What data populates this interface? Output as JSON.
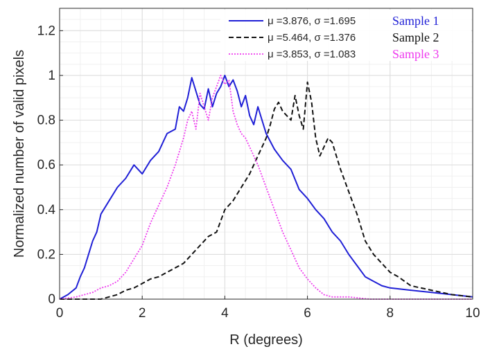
{
  "chart_data": {
    "type": "line",
    "xlabel": "R (degrees)",
    "ylabel": "Normalized number of valid pixels",
    "xlim": [
      0,
      10
    ],
    "ylim": [
      0,
      1.3
    ],
    "xticks": [
      "0",
      "2",
      "4",
      "6",
      "8",
      "10"
    ],
    "yticks": [
      "0",
      "0.2",
      "0.4",
      "0.6",
      "0.8",
      "1",
      "1.2"
    ],
    "grid": true,
    "legend_position": "top-right",
    "series": [
      {
        "name": "Sample 1",
        "stats": "μ =3.876, σ =1.695",
        "color": "#1f1fd6",
        "style": "solid",
        "x": [
          0,
          0.2,
          0.4,
          0.5,
          0.6,
          0.8,
          0.9,
          1.0,
          1.2,
          1.4,
          1.6,
          1.8,
          2.0,
          2.2,
          2.4,
          2.5,
          2.6,
          2.8,
          2.9,
          3.0,
          3.1,
          3.2,
          3.4,
          3.5,
          3.6,
          3.7,
          3.8,
          3.9,
          4.0,
          4.1,
          4.2,
          4.3,
          4.4,
          4.5,
          4.6,
          4.7,
          4.8,
          5.0,
          5.2,
          5.4,
          5.6,
          5.8,
          6.0,
          6.2,
          6.4,
          6.6,
          6.8,
          7.0,
          7.2,
          7.4,
          7.6,
          7.8,
          8.0,
          8.5,
          9.0,
          9.5,
          10.0
        ],
        "y": [
          0,
          0.02,
          0.05,
          0.1,
          0.14,
          0.26,
          0.3,
          0.38,
          0.44,
          0.5,
          0.54,
          0.6,
          0.56,
          0.62,
          0.66,
          0.7,
          0.74,
          0.76,
          0.86,
          0.84,
          0.9,
          0.99,
          0.87,
          0.85,
          0.94,
          0.86,
          0.92,
          0.95,
          1.0,
          0.95,
          0.98,
          0.93,
          0.86,
          0.91,
          0.82,
          0.78,
          0.86,
          0.74,
          0.67,
          0.62,
          0.58,
          0.49,
          0.45,
          0.4,
          0.36,
          0.3,
          0.26,
          0.2,
          0.15,
          0.1,
          0.08,
          0.06,
          0.05,
          0.04,
          0.03,
          0.02,
          0.01
        ]
      },
      {
        "name": "Sample 2",
        "stats": "μ =5.464, σ =1.376",
        "color": "#111111",
        "style": "dashed",
        "x": [
          0,
          1.0,
          1.4,
          1.6,
          1.8,
          2.0,
          2.2,
          2.4,
          2.6,
          2.8,
          3.0,
          3.2,
          3.4,
          3.6,
          3.8,
          4.0,
          4.2,
          4.4,
          4.6,
          4.8,
          5.0,
          5.1,
          5.2,
          5.3,
          5.4,
          5.5,
          5.6,
          5.7,
          5.8,
          5.9,
          6.0,
          6.1,
          6.2,
          6.3,
          6.4,
          6.5,
          6.6,
          6.7,
          6.8,
          7.0,
          7.2,
          7.4,
          7.6,
          7.8,
          8.0,
          8.2,
          8.5,
          9.0,
          9.5,
          10.0
        ],
        "y": [
          0,
          0.0,
          0.02,
          0.04,
          0.05,
          0.07,
          0.09,
          0.1,
          0.12,
          0.14,
          0.16,
          0.2,
          0.24,
          0.28,
          0.3,
          0.4,
          0.44,
          0.5,
          0.56,
          0.64,
          0.72,
          0.78,
          0.85,
          0.88,
          0.84,
          0.82,
          0.8,
          0.91,
          0.82,
          0.76,
          0.97,
          0.88,
          0.72,
          0.64,
          0.68,
          0.72,
          0.7,
          0.64,
          0.58,
          0.48,
          0.38,
          0.26,
          0.2,
          0.16,
          0.12,
          0.1,
          0.06,
          0.04,
          0.02,
          0.01
        ]
      },
      {
        "name": "Sample 3",
        "stats": "μ =3.853, σ =1.083",
        "color": "#ee3bee",
        "style": "dotted",
        "x": [
          0,
          0.4,
          0.6,
          0.8,
          1.0,
          1.2,
          1.4,
          1.6,
          1.8,
          2.0,
          2.2,
          2.4,
          2.6,
          2.8,
          3.0,
          3.1,
          3.2,
          3.3,
          3.4,
          3.5,
          3.6,
          3.7,
          3.8,
          3.9,
          4.0,
          4.1,
          4.2,
          4.3,
          4.4,
          4.5,
          4.6,
          4.8,
          5.0,
          5.2,
          5.4,
          5.6,
          5.8,
          6.0,
          6.2,
          6.4,
          6.6,
          7.0,
          7.5,
          8.0,
          9.0,
          10.0
        ],
        "y": [
          0,
          0.01,
          0.02,
          0.03,
          0.05,
          0.06,
          0.08,
          0.12,
          0.18,
          0.24,
          0.34,
          0.42,
          0.5,
          0.6,
          0.72,
          0.8,
          0.84,
          0.76,
          0.92,
          0.86,
          0.8,
          0.9,
          0.95,
          1.0,
          0.96,
          0.98,
          0.84,
          0.78,
          0.74,
          0.72,
          0.68,
          0.6,
          0.5,
          0.4,
          0.3,
          0.22,
          0.14,
          0.09,
          0.05,
          0.02,
          0.01,
          0.01,
          0.0,
          0.0,
          0.0,
          0.0
        ]
      }
    ]
  }
}
